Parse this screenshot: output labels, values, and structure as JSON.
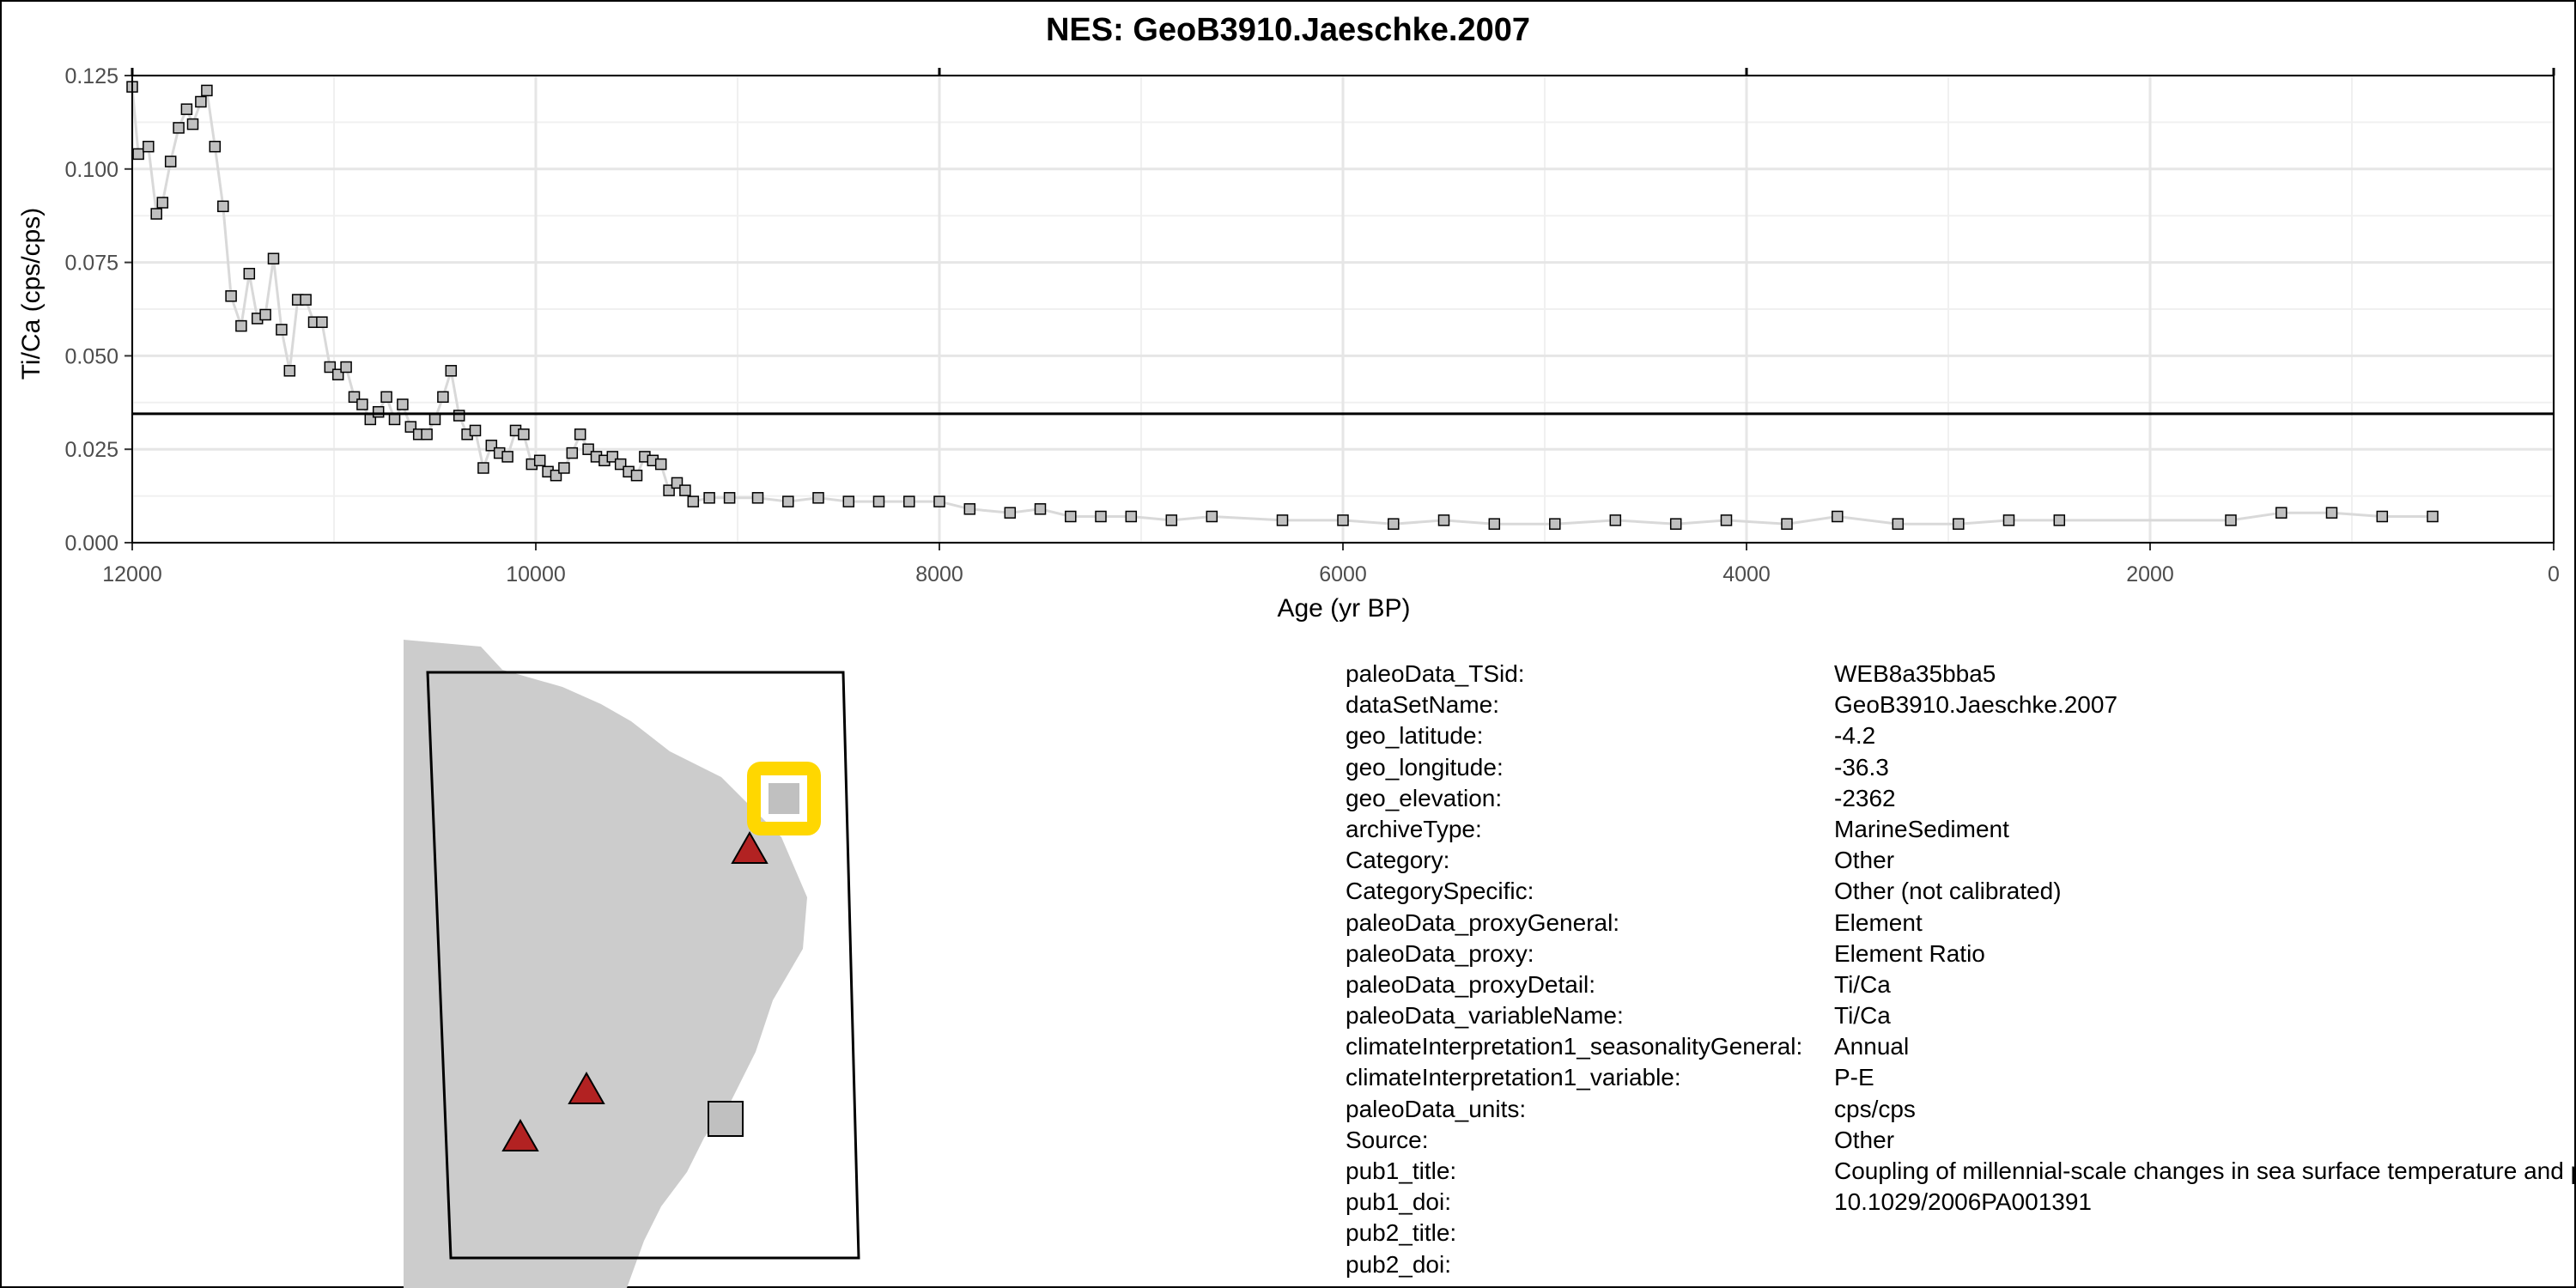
{
  "chart_data": {
    "type": "scatter",
    "title": "NES: GeoB3910.Jaeschke.2007",
    "xlabel": "Age (yr BP)",
    "ylabel": "Ti/Ca (cps/cps)",
    "xlim": [
      12000,
      0
    ],
    "ylim": [
      0,
      0.125
    ],
    "x_reversed": true,
    "xticks": [
      12000,
      10000,
      8000,
      6000,
      4000,
      2000,
      0
    ],
    "yticks": [
      0.0,
      0.025,
      0.05,
      0.075,
      0.1,
      0.125
    ],
    "ytick_labels": [
      "0.000",
      "0.025",
      "0.050",
      "0.075",
      "0.100",
      "0.125"
    ],
    "reference_line_y": 0.0345,
    "grid": true,
    "series_color": "#c0c0c0",
    "line_color": "#d9d9d9",
    "x": [
      12000,
      11970,
      11920,
      11880,
      11850,
      11810,
      11770,
      11730,
      11700,
      11660,
      11630,
      11590,
      11550,
      11510,
      11460,
      11420,
      11380,
      11340,
      11300,
      11260,
      11220,
      11180,
      11140,
      11100,
      11060,
      11020,
      10980,
      10940,
      10900,
      10860,
      10820,
      10780,
      10740,
      10700,
      10660,
      10620,
      10580,
      10540,
      10500,
      10460,
      10420,
      10380,
      10340,
      10300,
      10260,
      10220,
      10180,
      10140,
      10100,
      10060,
      10020,
      9980,
      9940,
      9900,
      9860,
      9820,
      9780,
      9740,
      9700,
      9660,
      9620,
      9580,
      9540,
      9500,
      9460,
      9420,
      9380,
      9340,
      9300,
      9260,
      9220,
      9140,
      9040,
      8900,
      8750,
      8600,
      8450,
      8300,
      8150,
      8000,
      7850,
      7650,
      7500,
      7350,
      7200,
      7050,
      6850,
      6650,
      6300,
      6000,
      5750,
      5500,
      5250,
      4950,
      4650,
      4350,
      4100,
      3800,
      3550,
      3250,
      2950,
      2700,
      2450,
      1600,
      1350,
      1100,
      850,
      600
    ],
    "values": [
      0.122,
      0.104,
      0.106,
      0.088,
      0.091,
      0.102,
      0.111,
      0.116,
      0.112,
      0.118,
      0.121,
      0.106,
      0.09,
      0.066,
      0.058,
      0.072,
      0.06,
      0.061,
      0.076,
      0.057,
      0.046,
      0.065,
      0.065,
      0.059,
      0.059,
      0.047,
      0.045,
      0.047,
      0.039,
      0.037,
      0.033,
      0.035,
      0.039,
      0.033,
      0.037,
      0.031,
      0.029,
      0.029,
      0.033,
      0.039,
      0.046,
      0.034,
      0.029,
      0.03,
      0.02,
      0.026,
      0.024,
      0.023,
      0.03,
      0.029,
      0.021,
      0.022,
      0.019,
      0.018,
      0.02,
      0.024,
      0.029,
      0.025,
      0.023,
      0.022,
      0.023,
      0.021,
      0.019,
      0.018,
      0.023,
      0.022,
      0.021,
      0.014,
      0.016,
      0.014,
      0.011,
      0.012,
      0.012,
      0.012,
      0.011,
      0.012,
      0.011,
      0.011,
      0.011,
      0.011,
      0.009,
      0.008,
      0.009,
      0.007,
      0.007,
      0.007,
      0.006,
      0.007,
      0.006,
      0.006,
      0.005,
      0.006,
      0.005,
      0.005,
      0.006,
      0.005,
      0.006,
      0.005,
      0.007,
      0.005,
      0.005,
      0.006,
      0.006,
      0.006,
      0.008,
      0.008,
      0.007,
      0.007
    ]
  },
  "map": {
    "land_color": "#cccccc",
    "target_marker_color": "#c0c0c0",
    "highlight_color": "#ffd700",
    "other_site_color": "#b22222"
  },
  "metadata": [
    {
      "key": "paleoData_TSid:",
      "value": "WEB8a35bba5"
    },
    {
      "key": "dataSetName:",
      "value": "GeoB3910.Jaeschke.2007"
    },
    {
      "key": "geo_latitude:",
      "value": "-4.2"
    },
    {
      "key": "geo_longitude:",
      "value": "-36.3"
    },
    {
      "key": "geo_elevation:",
      "value": "-2362"
    },
    {
      "key": "archiveType:",
      "value": "MarineSediment"
    },
    {
      "key": "Category:",
      "value": "Other"
    },
    {
      "key": "CategorySpecific:",
      "value": "Other (not calibrated)"
    },
    {
      "key": "paleoData_proxyGeneral:",
      "value": "Element"
    },
    {
      "key": "paleoData_proxy:",
      "value": "Element Ratio"
    },
    {
      "key": "paleoData_proxyDetail:",
      "value": "Ti/Ca"
    },
    {
      "key": "paleoData_variableName:",
      "value": "Ti/Ca"
    },
    {
      "key": "climateInterpretation1_seasonalityGeneral:",
      "value": "Annual"
    },
    {
      "key": "climateInterpretation1_variable:",
      "value": "P-E"
    },
    {
      "key": "paleoData_units:",
      "value": "cps/cps"
    },
    {
      "key": "Source:",
      "value": "Other"
    },
    {
      "key": "pub1_title:",
      "value": "Coupling of millennial-scale changes in sea surface temperature and precipitation off northeastern Brazil with high-latitude climate shifts during the last glacial period"
    },
    {
      "key": "pub1_doi:",
      "value": "10.1029/2006PA001391"
    },
    {
      "key": "pub2_title:",
      "value": ""
    },
    {
      "key": "pub2_doi:",
      "value": ""
    }
  ]
}
